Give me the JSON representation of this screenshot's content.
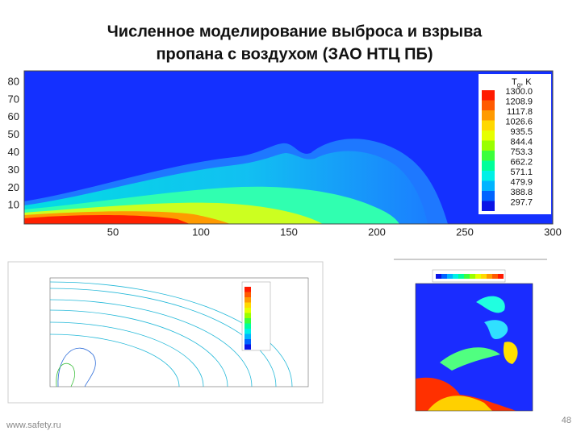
{
  "header": {
    "title_lines": [
      "Численное моделирование выброса и взрыва",
      "пропана с воздухом (ЗАО НТЦ ПБ)"
    ]
  },
  "main_plot": {
    "y_ticks": [
      "80",
      "70",
      "60",
      "50",
      "40",
      "30",
      "20",
      "10"
    ],
    "x_ticks": [
      "50",
      "100",
      "150",
      "200",
      "250",
      "300"
    ],
    "legend": {
      "symbol": "T",
      "subscript": "g",
      "unit": ", K",
      "levels": [
        "1300.0",
        "1208.9",
        "1117.8",
        "1026.6",
        "935.5",
        "844.4",
        "753.3",
        "662.2",
        "571.1",
        "479.9",
        "388.8",
        "297.7"
      ],
      "colors": [
        "#ff1a00",
        "#ff5a00",
        "#ff9a00",
        "#ffd800",
        "#e6ff00",
        "#9aff00",
        "#3cff3c",
        "#00ff9a",
        "#00f0e6",
        "#00b4ff",
        "#0064ff",
        "#0a14e6"
      ]
    }
  },
  "footer": {
    "site": "www.safety.ru",
    "page": "48"
  }
}
